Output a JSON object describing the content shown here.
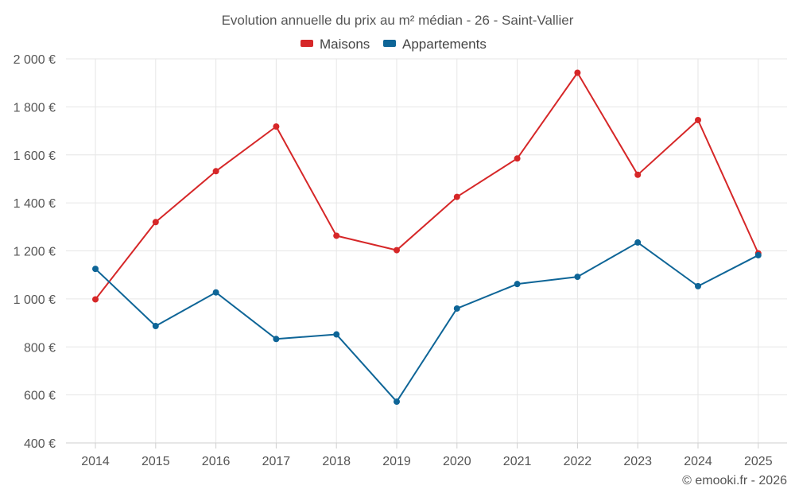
{
  "chart_data": {
    "type": "line",
    "title": "Evolution annuelle du prix au m² médian - 26 - Saint-Vallier",
    "categories": [
      "2014",
      "2015",
      "2016",
      "2017",
      "2018",
      "2019",
      "2020",
      "2021",
      "2022",
      "2023",
      "2024",
      "2025"
    ],
    "series": [
      {
        "name": "Maisons",
        "color": "#d62728",
        "values": [
          998,
          1320,
          1532,
          1718,
          1263,
          1203,
          1425,
          1585,
          1942,
          1517,
          1745,
          1190
        ]
      },
      {
        "name": "Appartements",
        "color": "#0e6597",
        "values": [
          1125,
          887,
          1027,
          833,
          852,
          572,
          960,
          1062,
          1092,
          1235,
          1053,
          1182
        ]
      }
    ],
    "ylim": [
      400,
      2000
    ],
    "yticks": [
      400,
      600,
      800,
      1000,
      1200,
      1400,
      1600,
      1800,
      2000
    ],
    "ytick_labels": [
      "400 €",
      "600 €",
      "800 €",
      "1 000 €",
      "1 200 €",
      "1 400 €",
      "1 600 €",
      "1 800 €",
      "2 000 €"
    ],
    "xlabel": "",
    "ylabel": "",
    "grid": true,
    "legend_position": "top-center"
  },
  "credit": "© emooki.fr - 2026"
}
